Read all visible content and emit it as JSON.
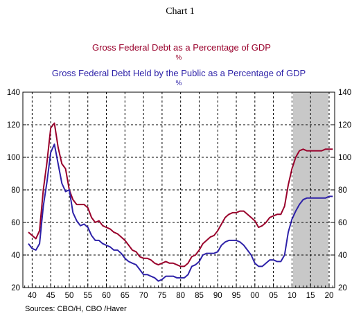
{
  "chart_data": {
    "type": "line",
    "title": "Chart 1",
    "series": [
      {
        "name": "Gross Federal Debt as a Percentage of GDP",
        "unit": "%",
        "color": "#99002b",
        "x": [
          1939,
          1940,
          1941,
          1942,
          1943,
          1944,
          1945,
          1946,
          1947,
          1948,
          1949,
          1950,
          1951,
          1952,
          1953,
          1954,
          1955,
          1956,
          1957,
          1958,
          1959,
          1960,
          1961,
          1962,
          1963,
          1964,
          1965,
          1966,
          1967,
          1968,
          1969,
          1970,
          1971,
          1972,
          1973,
          1974,
          1975,
          1976,
          1977,
          1978,
          1979,
          1980,
          1981,
          1982,
          1983,
          1984,
          1985,
          1986,
          1987,
          1988,
          1989,
          1990,
          1991,
          1992,
          1993,
          1994,
          1995,
          1996,
          1997,
          1998,
          1999,
          2000,
          2001,
          2002,
          2003,
          2004,
          2005,
          2006,
          2007,
          2008,
          2009,
          2010,
          2011,
          2012,
          2013,
          2014,
          2015,
          2016,
          2017,
          2018,
          2019,
          2020,
          2021
        ],
        "values": [
          54,
          52,
          50,
          55,
          80,
          97,
          118,
          121,
          106,
          96,
          93,
          80,
          74,
          71,
          71,
          71,
          69,
          63,
          60,
          61,
          58,
          57,
          56,
          54,
          53,
          51,
          49,
          46,
          43,
          42,
          39,
          38,
          38,
          37,
          35,
          34,
          35,
          36,
          35,
          35,
          34,
          33,
          33,
          35,
          39,
          40,
          43,
          47,
          49,
          51,
          52,
          55,
          59,
          63,
          65,
          66,
          66,
          67,
          67,
          65,
          63,
          61,
          57,
          58,
          60,
          63,
          64,
          65,
          65,
          70,
          83,
          93,
          100,
          104,
          105,
          104,
          104,
          104,
          104,
          104,
          105,
          105,
          105
        ]
      },
      {
        "name": "Gross Federal Debt Held by the Public as a Percentage of GDP",
        "unit": "%",
        "color": "#2d21a8",
        "x": [
          1939,
          1940,
          1941,
          1942,
          1943,
          1944,
          1945,
          1946,
          1947,
          1948,
          1949,
          1950,
          1951,
          1952,
          1953,
          1954,
          1955,
          1956,
          1957,
          1958,
          1959,
          1960,
          1961,
          1962,
          1963,
          1964,
          1965,
          1966,
          1967,
          1968,
          1969,
          1970,
          1971,
          1972,
          1973,
          1974,
          1975,
          1976,
          1977,
          1978,
          1979,
          1980,
          1981,
          1982,
          1983,
          1984,
          1985,
          1986,
          1987,
          1988,
          1989,
          1990,
          1991,
          1992,
          1993,
          1994,
          1995,
          1996,
          1997,
          1998,
          1999,
          2000,
          2001,
          2002,
          2003,
          2004,
          2005,
          2006,
          2007,
          2008,
          2009,
          2010,
          2011,
          2012,
          2013,
          2014,
          2015,
          2016,
          2017,
          2018,
          2019,
          2020,
          2021
        ],
        "values": [
          47,
          44,
          43,
          47,
          70,
          85,
          103,
          108,
          96,
          84,
          79,
          80,
          66,
          61,
          58,
          59,
          57,
          52,
          49,
          49,
          47,
          46,
          45,
          43,
          43,
          41,
          38,
          36,
          35,
          34,
          31,
          28,
          28,
          27,
          26,
          24,
          25,
          27,
          27,
          27,
          26,
          26,
          26,
          28,
          33,
          34,
          36,
          40,
          41,
          41,
          41,
          42,
          46,
          48,
          49,
          49,
          49,
          48,
          46,
          43,
          40,
          35,
          33,
          33,
          35,
          37,
          37,
          36,
          36,
          40,
          54,
          62,
          67,
          71,
          74,
          75,
          75,
          75,
          75,
          75,
          75,
          76,
          76
        ]
      }
    ],
    "xlim": [
      1937.5,
      2021.5
    ],
    "ylim": [
      20,
      140
    ],
    "x_tick_values": [
      1940,
      1945,
      1950,
      1955,
      1960,
      1965,
      1970,
      1975,
      1980,
      1985,
      1990,
      1995,
      2000,
      2005,
      2010,
      2015,
      2020
    ],
    "x_tick_labels": [
      "40",
      "45",
      "50",
      "55",
      "60",
      "65",
      "70",
      "75",
      "80",
      "85",
      "90",
      "95",
      "00",
      "05",
      "10",
      "15",
      "20"
    ],
    "y_ticks": [
      20,
      40,
      60,
      80,
      100,
      120,
      140
    ],
    "y_tick_labels": [
      "20",
      "40",
      "60",
      "80",
      "100",
      "120",
      "140"
    ],
    "shaded_region": {
      "from": 2010.3,
      "to": 2019.8,
      "color": "#c8c8c8"
    },
    "grid": true,
    "grid_style": "dashed",
    "source_note": "Sources:   CBO/H, CBO /Haver"
  }
}
